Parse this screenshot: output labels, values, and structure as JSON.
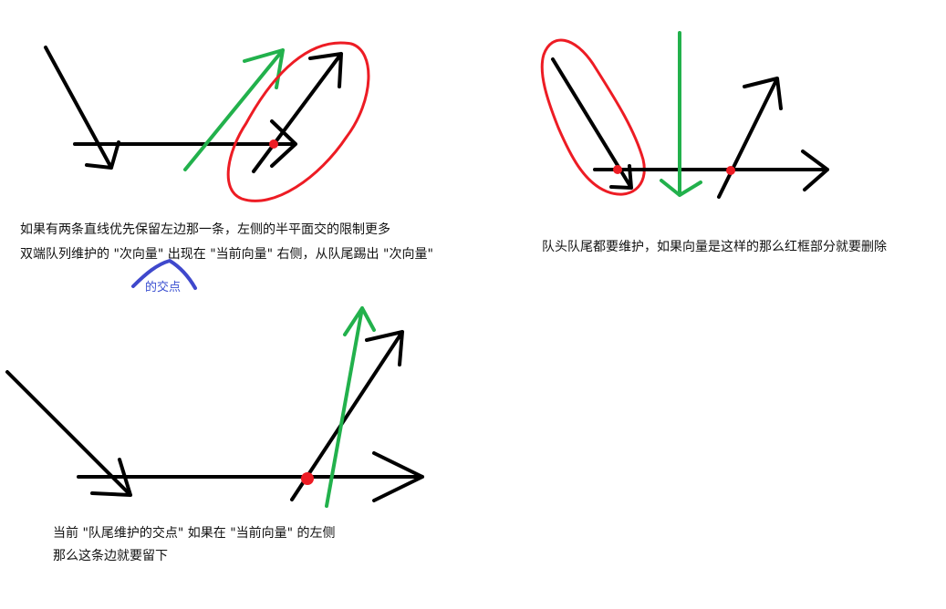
{
  "colors": {
    "black_stroke": "#000000",
    "green_stroke": "#22b14c",
    "red_stroke": "#ed1c24",
    "blue_stroke": "#3f48cc"
  },
  "annotations": {
    "top_left_line1": "如果有两条直线优先保留左边那一条，左侧的半平面交的限制更多",
    "top_left_line2": "双端队列维护的 \"次向量\" 出现在 \"当前向量\" 右侧，从队尾踢出 \"次向量\"",
    "top_left_blue_note": "的交点",
    "top_right_line1": "队头队尾都要维护，如果向量是这样的那么红框部分就要删除",
    "bottom_left_line1": "当前 \"队尾维护的交点\" 如果在 \"当前向量\" 的左侧",
    "bottom_left_line2": "那么这条边就要留下"
  }
}
